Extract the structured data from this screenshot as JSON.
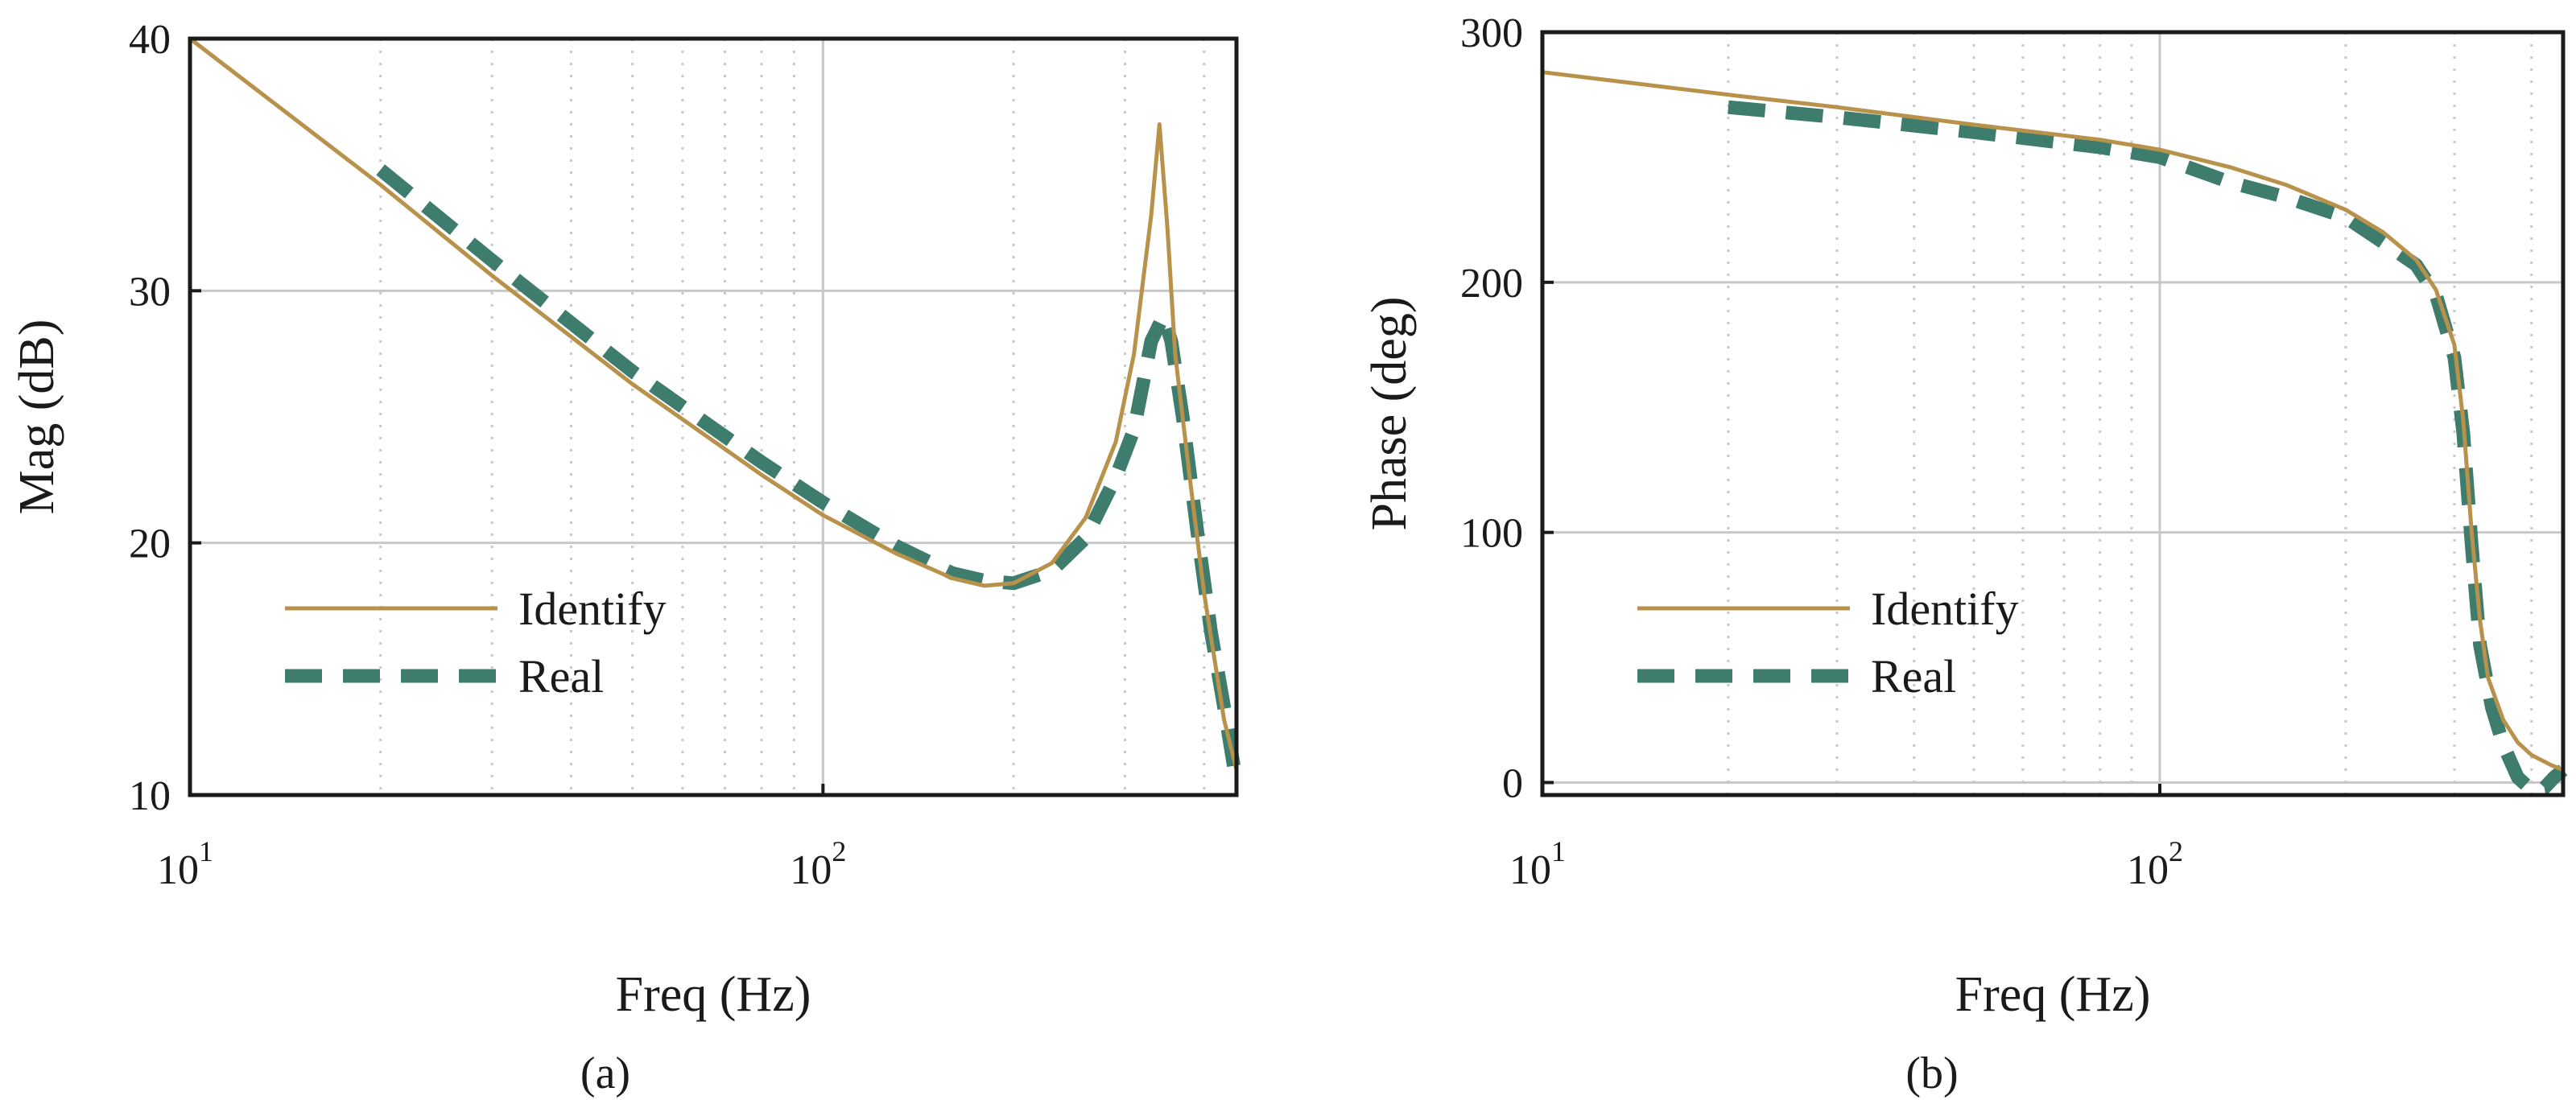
{
  "colors": {
    "identify": "#B8914A",
    "real": "#3E7C6E",
    "grid": "#C8C8C8",
    "axis": "#1a1a1a"
  },
  "chart_data": [
    {
      "type": "line",
      "caption": "(a)",
      "xlabel": "Freq (Hz)",
      "ylabel": "Mag (dB)",
      "xscale": "log",
      "xlim": [
        10,
        450
      ],
      "ylim": [
        10,
        40
      ],
      "yticks": [
        "10",
        "20",
        "30",
        "40"
      ],
      "xticks": [
        {
          "base": "10",
          "exp": "1"
        },
        {
          "base": "10",
          "exp": "2"
        }
      ],
      "legend_position": "lower-left",
      "series": [
        {
          "name": "Identify",
          "style": "solid",
          "x": [
            10,
            20,
            30,
            50,
            80,
            100,
            130,
            160,
            180,
            200,
            230,
            260,
            290,
            310,
            330,
            340,
            350,
            360,
            380,
            400,
            430,
            450
          ],
          "y": [
            40,
            34.2,
            30.6,
            26.3,
            22.7,
            21.1,
            19.6,
            18.6,
            18.3,
            18.4,
            19.2,
            21.0,
            24.0,
            27.5,
            33.0,
            36.6,
            32.5,
            27.5,
            22.5,
            18.0,
            13.0,
            11.0
          ]
        },
        {
          "name": "Real",
          "style": "dashed",
          "x": [
            20,
            30,
            50,
            80,
            100,
            130,
            160,
            180,
            200,
            230,
            260,
            290,
            310,
            330,
            345,
            355,
            370,
            390,
            410,
            430,
            450
          ],
          "y": [
            34.8,
            31.2,
            26.8,
            23.2,
            21.6,
            19.9,
            18.8,
            18.5,
            18.4,
            18.9,
            20.2,
            22.6,
            24.5,
            28.0,
            29.0,
            28.0,
            25.0,
            20.5,
            16.5,
            13.5,
            10.5
          ]
        }
      ]
    },
    {
      "type": "line",
      "caption": "(b)",
      "xlabel": "Freq (Hz)",
      "ylabel": "Phase (deg)",
      "xscale": "log",
      "xlim": [
        10,
        450
      ],
      "ylim": [
        -5,
        300
      ],
      "yticks": [
        "0",
        "100",
        "200",
        "300"
      ],
      "xticks": [
        {
          "base": "10",
          "exp": "1"
        },
        {
          "base": "10",
          "exp": "2"
        }
      ],
      "legend_position": "lower-left",
      "series": [
        {
          "name": "Identify",
          "style": "solid",
          "x": [
            10,
            20,
            30,
            50,
            80,
            100,
            130,
            160,
            200,
            230,
            260,
            280,
            300,
            310,
            320,
            330,
            340,
            360,
            380,
            400,
            430,
            450
          ],
          "y": [
            284,
            275,
            270,
            263,
            257,
            253,
            246,
            239,
            229,
            220,
            209,
            197,
            175,
            145,
            100,
            65,
            42,
            25,
            16,
            11,
            7,
            5
          ]
        },
        {
          "name": "Real",
          "style": "dashed",
          "x": [
            20,
            30,
            50,
            80,
            100,
            130,
            160,
            200,
            230,
            260,
            280,
            300,
            310,
            320,
            330,
            345,
            360,
            380,
            400,
            420,
            435,
            450
          ],
          "y": [
            270,
            266,
            260,
            254,
            250,
            240,
            234,
            226,
            216,
            207,
            195,
            170,
            140,
            95,
            55,
            30,
            15,
            2,
            -3,
            -2,
            2,
            5
          ]
        }
      ]
    }
  ]
}
